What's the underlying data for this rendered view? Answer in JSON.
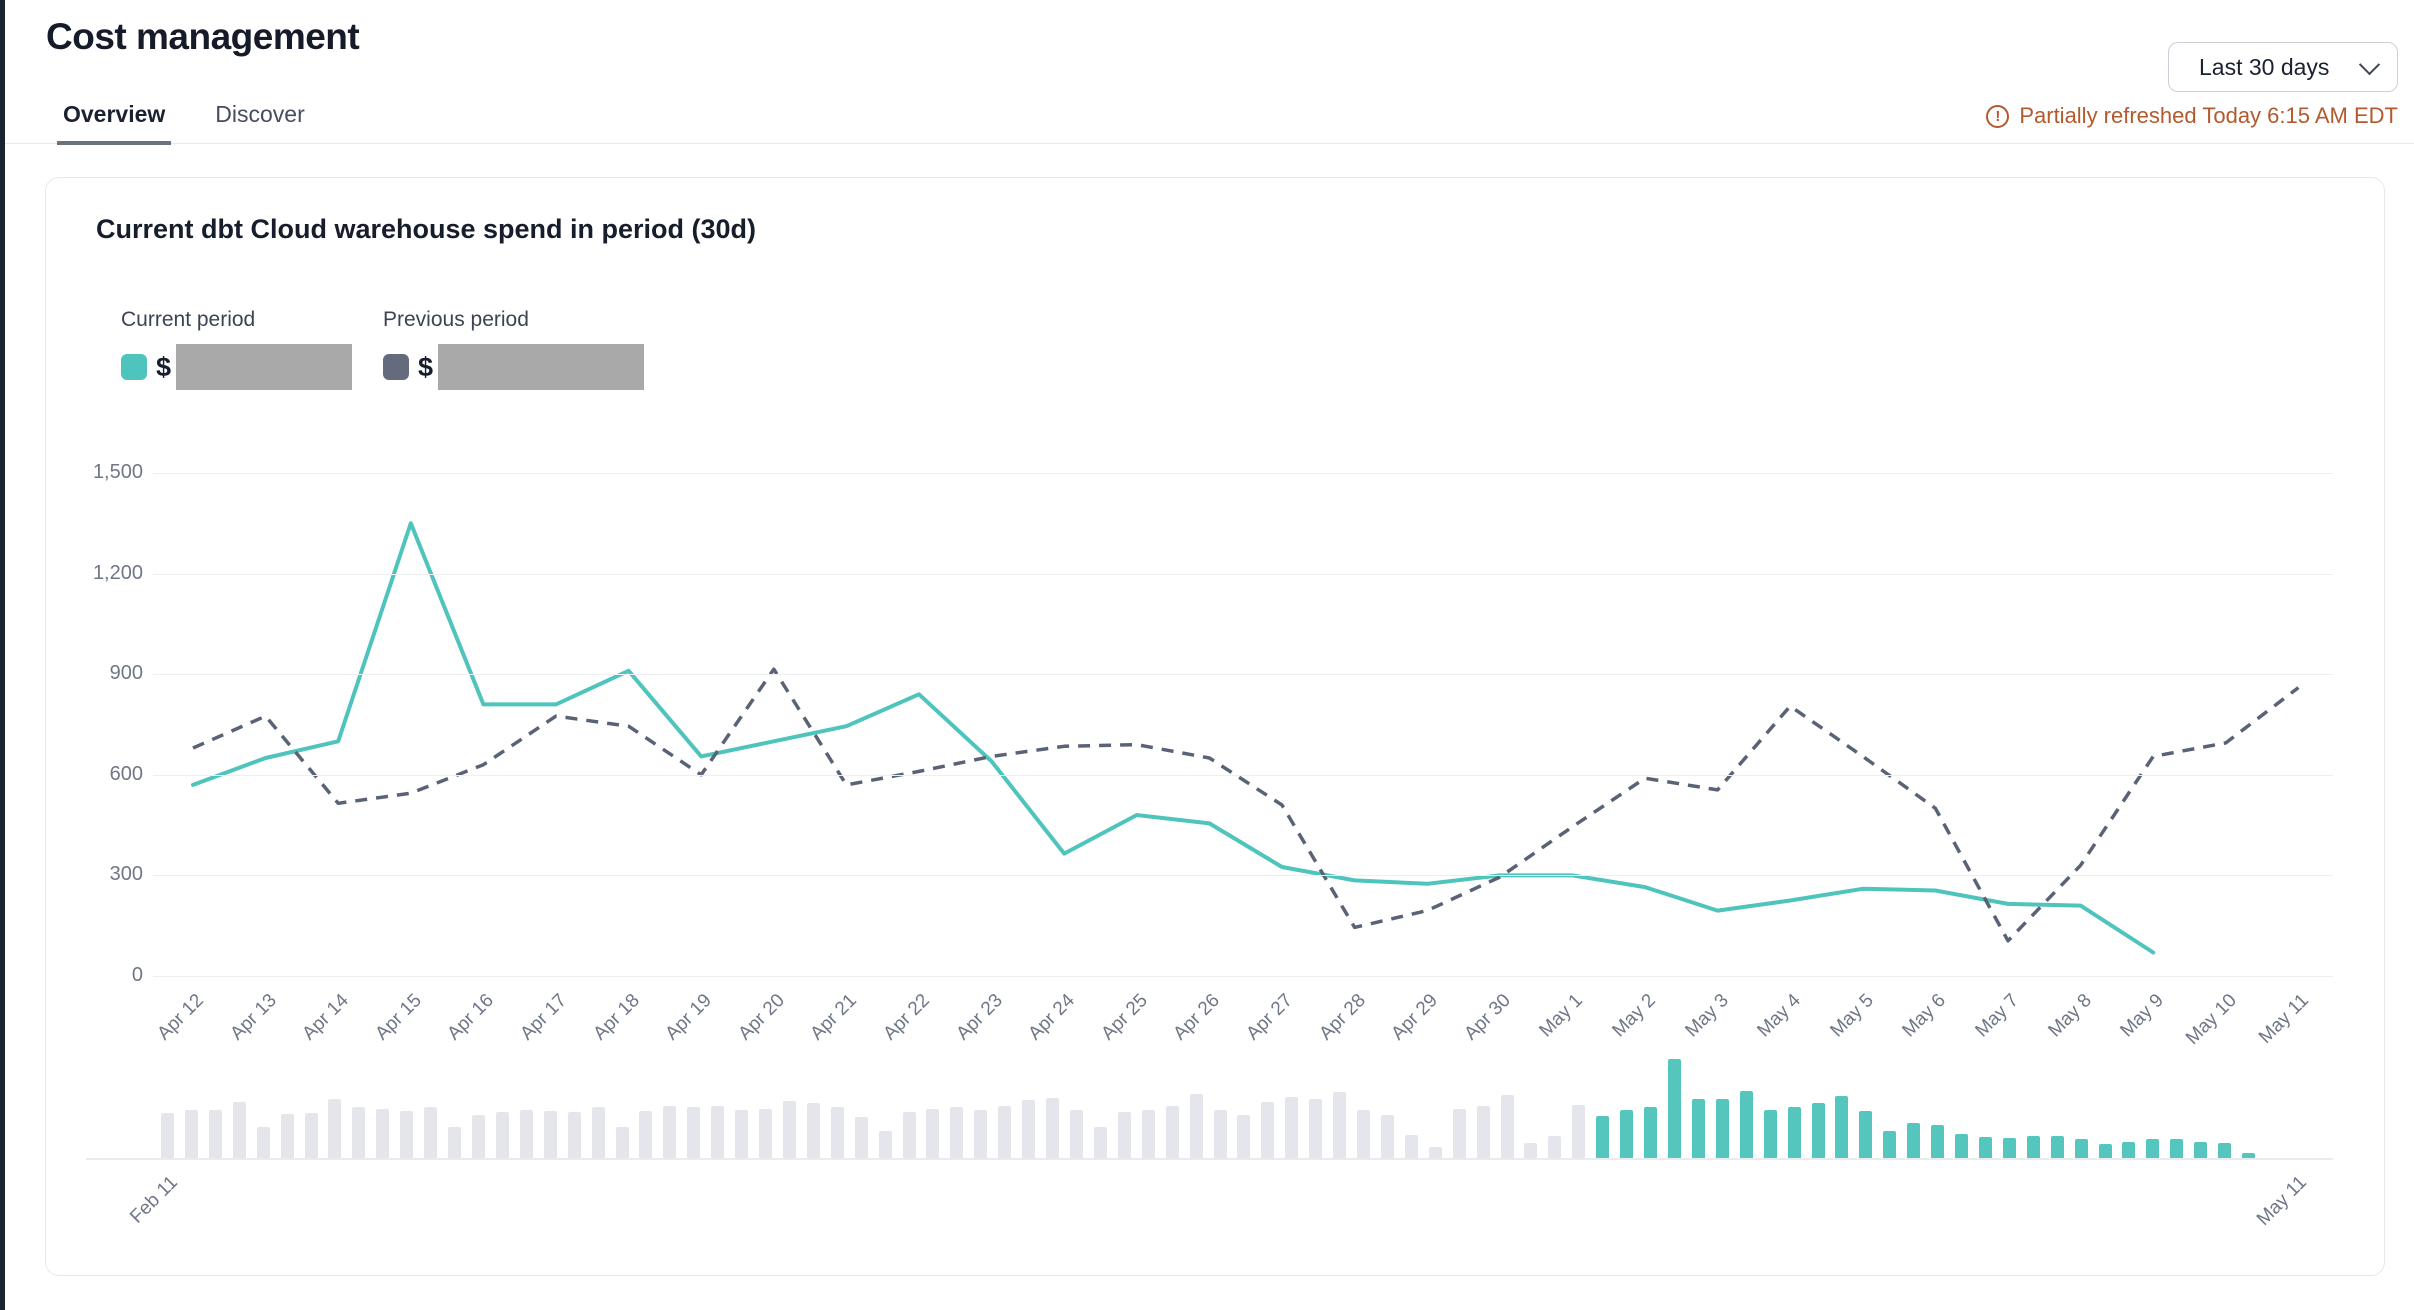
{
  "header": {
    "title": "Cost management",
    "range_selector": {
      "value": "Last 30 days"
    },
    "refresh_status": "Partially refreshed Today 6:15 AM EDT"
  },
  "tabs": [
    {
      "label": "Overview",
      "active": true
    },
    {
      "label": "Discover",
      "active": false
    }
  ],
  "card": {
    "title": "Current dbt Cloud warehouse spend in period (30d)",
    "legend": {
      "current": {
        "label": "Current period",
        "currency_prefix": "$",
        "value_redacted": true,
        "swatch_color": "#4EC4BC"
      },
      "previous": {
        "label": "Previous period",
        "currency_prefix": "$",
        "value_redacted": true,
        "swatch_color": "#636B7D"
      }
    }
  },
  "colors": {
    "accent_teal": "#4EC4BC",
    "previous_slate": "#5A6376",
    "redaction_gray": "#A9A9A9",
    "warning_orange": "#B3592E",
    "grid_gray": "#EEEFF2",
    "axis_label_gray": "#6F7787",
    "minimap_history_gray": "#E4E6EB",
    "minimap_selected_teal": "#55C6BE",
    "left_edge_navy": "#1B2232"
  },
  "chart_data": {
    "type": "line",
    "title": "Current dbt Cloud warehouse spend in period (30d)",
    "grid": "horizontal",
    "legend_position": "top-left",
    "ylim": [
      0,
      1500
    ],
    "y_ticks": [
      {
        "value": 0,
        "label": "0"
      },
      {
        "value": 300,
        "label": "300"
      },
      {
        "value": 600,
        "label": "600"
      },
      {
        "value": 900,
        "label": "900"
      },
      {
        "value": 1200,
        "label": "1,200"
      },
      {
        "value": 1500,
        "label": "1,500"
      }
    ],
    "categories": [
      "Apr 12",
      "Apr 13",
      "Apr 14",
      "Apr 15",
      "Apr 16",
      "Apr 17",
      "Apr 18",
      "Apr 19",
      "Apr 20",
      "Apr 21",
      "Apr 22",
      "Apr 23",
      "Apr 24",
      "Apr 25",
      "Apr 26",
      "Apr 27",
      "Apr 28",
      "Apr 29",
      "Apr 30",
      "May 1",
      "May 2",
      "May 3",
      "May 4",
      "May 5",
      "May 6",
      "May 7",
      "May 8",
      "May 9",
      "May 10",
      "May 11"
    ],
    "series": [
      {
        "name": "Current period",
        "style": "solid",
        "color": "#4EC4BC",
        "values": [
          570,
          650,
          700,
          1350,
          810,
          810,
          910,
          655,
          700,
          745,
          840,
          640,
          365,
          480,
          455,
          325,
          285,
          275,
          300,
          300,
          265,
          195,
          225,
          260,
          255,
          215,
          210,
          70,
          null,
          null
        ]
      },
      {
        "name": "Previous period",
        "style": "dashed",
        "color": "#5A6376",
        "values": [
          680,
          775,
          515,
          545,
          630,
          775,
          745,
          600,
          915,
          570,
          610,
          655,
          685,
          690,
          650,
          510,
          145,
          195,
          295,
          445,
          590,
          555,
          805,
          655,
          500,
          105,
          330,
          655,
          695,
          860
        ]
      }
    ],
    "minimap": {
      "type": "bar",
      "start_label": "Feb 11",
      "end_label": "May 11",
      "history_color": "#E4E6EB",
      "selected_color": "#55C6BE",
      "history_values": [
        615,
        660,
        650,
        765,
        425,
        595,
        610,
        800,
        700,
        665,
        640,
        690,
        430,
        585,
        630,
        660,
        645,
        625,
        690,
        420,
        640,
        705,
        690,
        710,
        650,
        670,
        780,
        755,
        700,
        560,
        365,
        630,
        665,
        700,
        655,
        705,
        790,
        820,
        660,
        425,
        635,
        660,
        710,
        870,
        650,
        590,
        760,
        830,
        800,
        905,
        655,
        585,
        310,
        150,
        670,
        705,
        865,
        205,
        305,
        725
      ],
      "selected_values": [
        570,
        650,
        700,
        1350,
        810,
        810,
        910,
        655,
        700,
        745,
        840,
        640,
        365,
        480,
        455,
        325,
        285,
        275,
        300,
        300,
        265,
        195,
        225,
        260,
        255,
        215,
        210,
        70,
        0,
        0
      ]
    }
  }
}
